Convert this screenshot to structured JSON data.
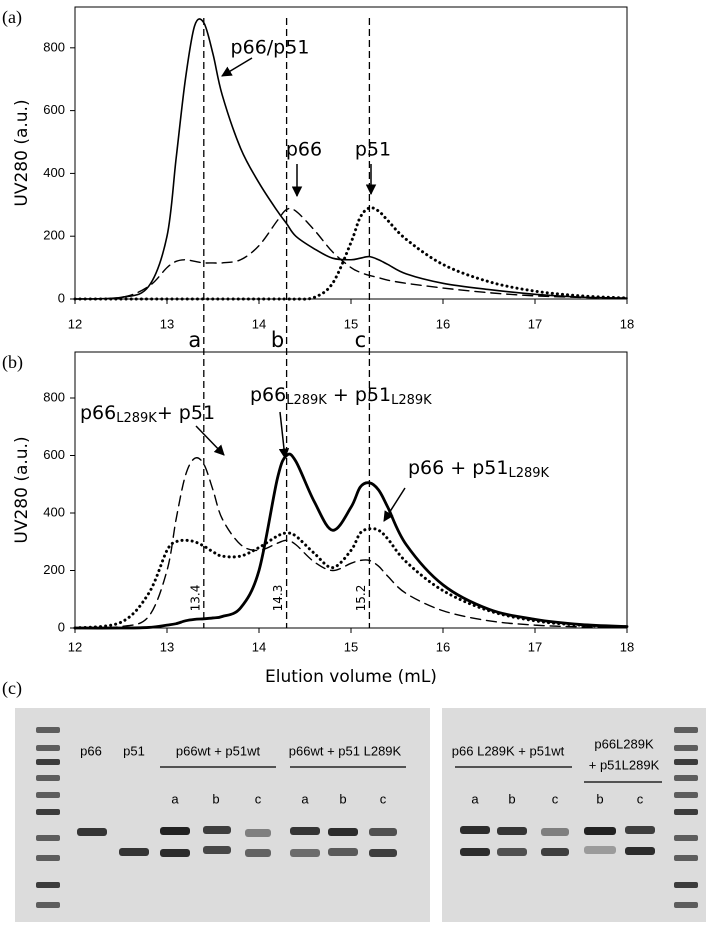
{
  "chart_data": [
    {
      "type": "line",
      "panel": "(a)",
      "ylabel": "UV280 (a.u.)",
      "x": [
        12,
        12.5,
        12.8,
        13,
        13.1,
        13.2,
        13.3,
        13.4,
        13.5,
        13.6,
        13.8,
        14,
        14.2,
        14.3,
        14.4,
        14.6,
        14.8,
        15,
        15.1,
        15.2,
        15.3,
        15.4,
        15.6,
        16,
        16.5,
        17,
        17.5,
        18
      ],
      "series": [
        {
          "name": "p66/p51",
          "color": "#000000",
          "dash": "solid",
          "values": [
            0,
            5,
            40,
            200,
            450,
            700,
            870,
            880,
            780,
            650,
            480,
            370,
            280,
            240,
            200,
            160,
            130,
            125,
            130,
            135,
            125,
            110,
            80,
            50,
            30,
            15,
            6,
            3
          ]
        },
        {
          "name": "p66",
          "color": "#000000",
          "dash": "dashed",
          "values": [
            0,
            5,
            40,
            100,
            120,
            125,
            120,
            115,
            115,
            115,
            125,
            170,
            250,
            285,
            280,
            220,
            150,
            100,
            85,
            75,
            68,
            60,
            50,
            35,
            20,
            10,
            5,
            2
          ]
        },
        {
          "name": "p51",
          "color": "#000000",
          "dash": "dotted",
          "values": [
            0,
            0,
            0,
            0,
            0,
            0,
            0,
            0,
            0,
            0,
            0,
            0,
            0,
            0,
            0,
            5,
            50,
            180,
            260,
            290,
            280,
            250,
            190,
            110,
            55,
            25,
            10,
            3
          ]
        }
      ],
      "xlim": [
        12,
        18
      ],
      "xticks": [
        12,
        13,
        14,
        15,
        16,
        17,
        18
      ],
      "ylim": [
        0,
        930
      ],
      "yticks": [
        0,
        200,
        400,
        600,
        800
      ]
    },
    {
      "type": "line",
      "panel": "(b)",
      "ylabel": "UV280 (a.u.)",
      "xlabel": "Elution volume (mL)",
      "x": [
        12,
        12.5,
        12.8,
        13,
        13.1,
        13.2,
        13.3,
        13.4,
        13.5,
        13.6,
        13.8,
        14,
        14.2,
        14.3,
        14.4,
        14.6,
        14.8,
        15,
        15.1,
        15.2,
        15.3,
        15.4,
        15.6,
        16,
        16.5,
        17,
        17.5,
        18
      ],
      "series": [
        {
          "name": [
            "p66",
            "L289K",
            "+ p51"
          ],
          "color": "#000000",
          "dash": "dashed",
          "values": [
            0,
            5,
            40,
            200,
            380,
            530,
            590,
            570,
            480,
            380,
            290,
            270,
            295,
            305,
            290,
            230,
            200,
            225,
            235,
            235,
            215,
            180,
            120,
            60,
            25,
            10,
            4,
            2
          ]
        },
        {
          "name": [
            "p66",
            "L289K",
            " + p51",
            "L289K"
          ],
          "color": "#000000",
          "dash": "bold",
          "values": [
            0,
            0,
            2,
            10,
            15,
            25,
            30,
            32,
            35,
            40,
            70,
            200,
            520,
            600,
            580,
            440,
            340,
            420,
            490,
            505,
            480,
            420,
            290,
            150,
            65,
            30,
            12,
            5
          ]
        },
        {
          "name": [
            "p66 + p51",
            "L289K"
          ],
          "color": "#000000",
          "dash": "dotted",
          "values": [
            0,
            20,
            120,
            270,
            300,
            305,
            300,
            285,
            265,
            250,
            250,
            280,
            320,
            330,
            320,
            260,
            210,
            270,
            330,
            345,
            340,
            310,
            230,
            130,
            60,
            25,
            10,
            4
          ]
        }
      ],
      "xlim": [
        12,
        18
      ],
      "xticks": [
        12,
        13,
        14,
        15,
        16,
        17,
        18
      ],
      "ylim": [
        0,
        960
      ],
      "yticks": [
        0,
        200,
        400,
        600,
        800
      ]
    }
  ],
  "guides": {
    "x": [
      13.4,
      14.3,
      15.2
    ],
    "labels": [
      "a",
      "b",
      "c"
    ]
  },
  "gel": {
    "panel": "(c)",
    "lanes": [
      "p66",
      "p51"
    ],
    "groups": [
      {
        "title": [
          "p66wt + p51wt"
        ],
        "lanes": [
          "a",
          "b",
          "c"
        ]
      },
      {
        "title": [
          "p66wt + p51 L289K"
        ],
        "lanes": [
          "a",
          "b",
          "c"
        ]
      },
      {
        "title": [
          "p66 L289K + p51wt"
        ],
        "lanes": [
          "a",
          "b",
          "c"
        ]
      },
      {
        "title": [
          "p66L289K",
          "+ p51L289K"
        ],
        "lanes": [
          "b",
          "c"
        ]
      }
    ]
  }
}
